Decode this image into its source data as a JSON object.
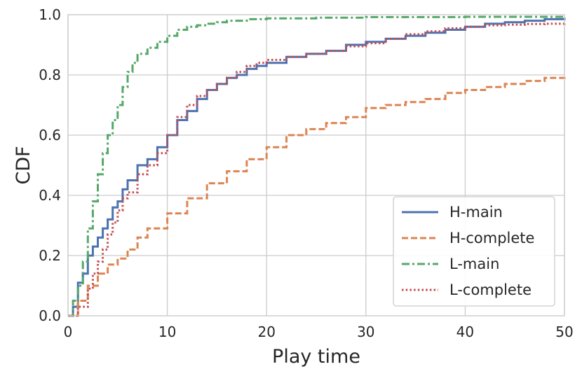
{
  "chart_data": {
    "type": "line",
    "title": "",
    "xlabel": "Play time",
    "ylabel": "CDF",
    "xlim": [
      0,
      50
    ],
    "ylim": [
      0,
      1
    ],
    "x_ticks": [
      "0",
      "10",
      "20",
      "30",
      "40",
      "50"
    ],
    "y_ticks": [
      "0.0",
      "0.2",
      "0.4",
      "0.6",
      "0.8",
      "1.0"
    ],
    "grid": true,
    "legend_position": "lower-right",
    "series": [
      {
        "name": "H-main",
        "color": "#4c72b0",
        "dash": "solid",
        "x": [
          0,
          0.5,
          1,
          1.5,
          2,
          2.5,
          3,
          3.5,
          4,
          4.5,
          5,
          5.5,
          6,
          7,
          8,
          9,
          10,
          11,
          12,
          13,
          14,
          15,
          16,
          17,
          18,
          19,
          20,
          22,
          24,
          26,
          28,
          30,
          32,
          34,
          36,
          38,
          40,
          42,
          44,
          46,
          48,
          50
        ],
        "y": [
          0,
          0.03,
          0.11,
          0.14,
          0.2,
          0.23,
          0.26,
          0.29,
          0.32,
          0.36,
          0.38,
          0.42,
          0.45,
          0.5,
          0.52,
          0.56,
          0.6,
          0.65,
          0.68,
          0.72,
          0.75,
          0.77,
          0.79,
          0.8,
          0.82,
          0.83,
          0.84,
          0.86,
          0.87,
          0.88,
          0.9,
          0.91,
          0.92,
          0.93,
          0.94,
          0.95,
          0.96,
          0.97,
          0.975,
          0.98,
          0.985,
          0.99
        ]
      },
      {
        "name": "H-complete",
        "color": "#dd8452",
        "dash": "dashed",
        "x": [
          0,
          1,
          2,
          3,
          4,
          5,
          6,
          7,
          8,
          10,
          12,
          14,
          16,
          18,
          20,
          22,
          24,
          26,
          28,
          30,
          32,
          34,
          36,
          38,
          40,
          42,
          44,
          46,
          48,
          50
        ],
        "y": [
          0,
          0.05,
          0.1,
          0.14,
          0.17,
          0.19,
          0.22,
          0.26,
          0.29,
          0.34,
          0.39,
          0.44,
          0.48,
          0.52,
          0.56,
          0.6,
          0.62,
          0.64,
          0.66,
          0.69,
          0.7,
          0.71,
          0.72,
          0.74,
          0.75,
          0.76,
          0.77,
          0.78,
          0.79,
          0.8
        ]
      },
      {
        "name": "L-main",
        "color": "#55a868",
        "dash": "dashdot",
        "x": [
          0,
          0.5,
          1,
          1.5,
          2,
          2.5,
          3,
          3.5,
          4,
          4.5,
          5,
          5.5,
          6,
          6.5,
          7,
          8,
          9,
          10,
          11,
          12,
          13,
          14,
          15,
          16,
          18,
          20,
          25,
          30,
          40,
          50
        ],
        "y": [
          0,
          0.05,
          0.1,
          0.18,
          0.29,
          0.38,
          0.47,
          0.54,
          0.6,
          0.65,
          0.7,
          0.76,
          0.81,
          0.84,
          0.87,
          0.89,
          0.91,
          0.93,
          0.95,
          0.96,
          0.965,
          0.97,
          0.975,
          0.98,
          0.985,
          0.988,
          0.99,
          0.992,
          0.993,
          0.995
        ]
      },
      {
        "name": "L-complete",
        "color": "#c44e52",
        "dash": "dotted",
        "x": [
          0,
          1,
          2,
          2.5,
          3,
          3.5,
          4,
          4.5,
          5,
          5.5,
          6,
          7,
          8,
          9,
          10,
          11,
          12,
          13,
          14,
          15,
          16,
          17,
          18,
          19,
          20,
          22,
          24,
          26,
          28,
          30,
          32,
          34,
          36,
          38,
          40,
          42,
          44,
          46,
          48,
          50
        ],
        "y": [
          0,
          0.03,
          0.09,
          0.14,
          0.18,
          0.22,
          0.27,
          0.31,
          0.35,
          0.39,
          0.41,
          0.47,
          0.5,
          0.54,
          0.6,
          0.66,
          0.7,
          0.73,
          0.75,
          0.77,
          0.79,
          0.81,
          0.83,
          0.84,
          0.85,
          0.86,
          0.87,
          0.88,
          0.895,
          0.905,
          0.92,
          0.935,
          0.945,
          0.955,
          0.96,
          0.965,
          0.967,
          0.969,
          0.97,
          0.972
        ]
      }
    ]
  },
  "style": {
    "plot_background": "#ffffff",
    "grid_color": "#cccccc",
    "frame_color": "#cccccc",
    "legend_frame_color": "#cccccc"
  }
}
